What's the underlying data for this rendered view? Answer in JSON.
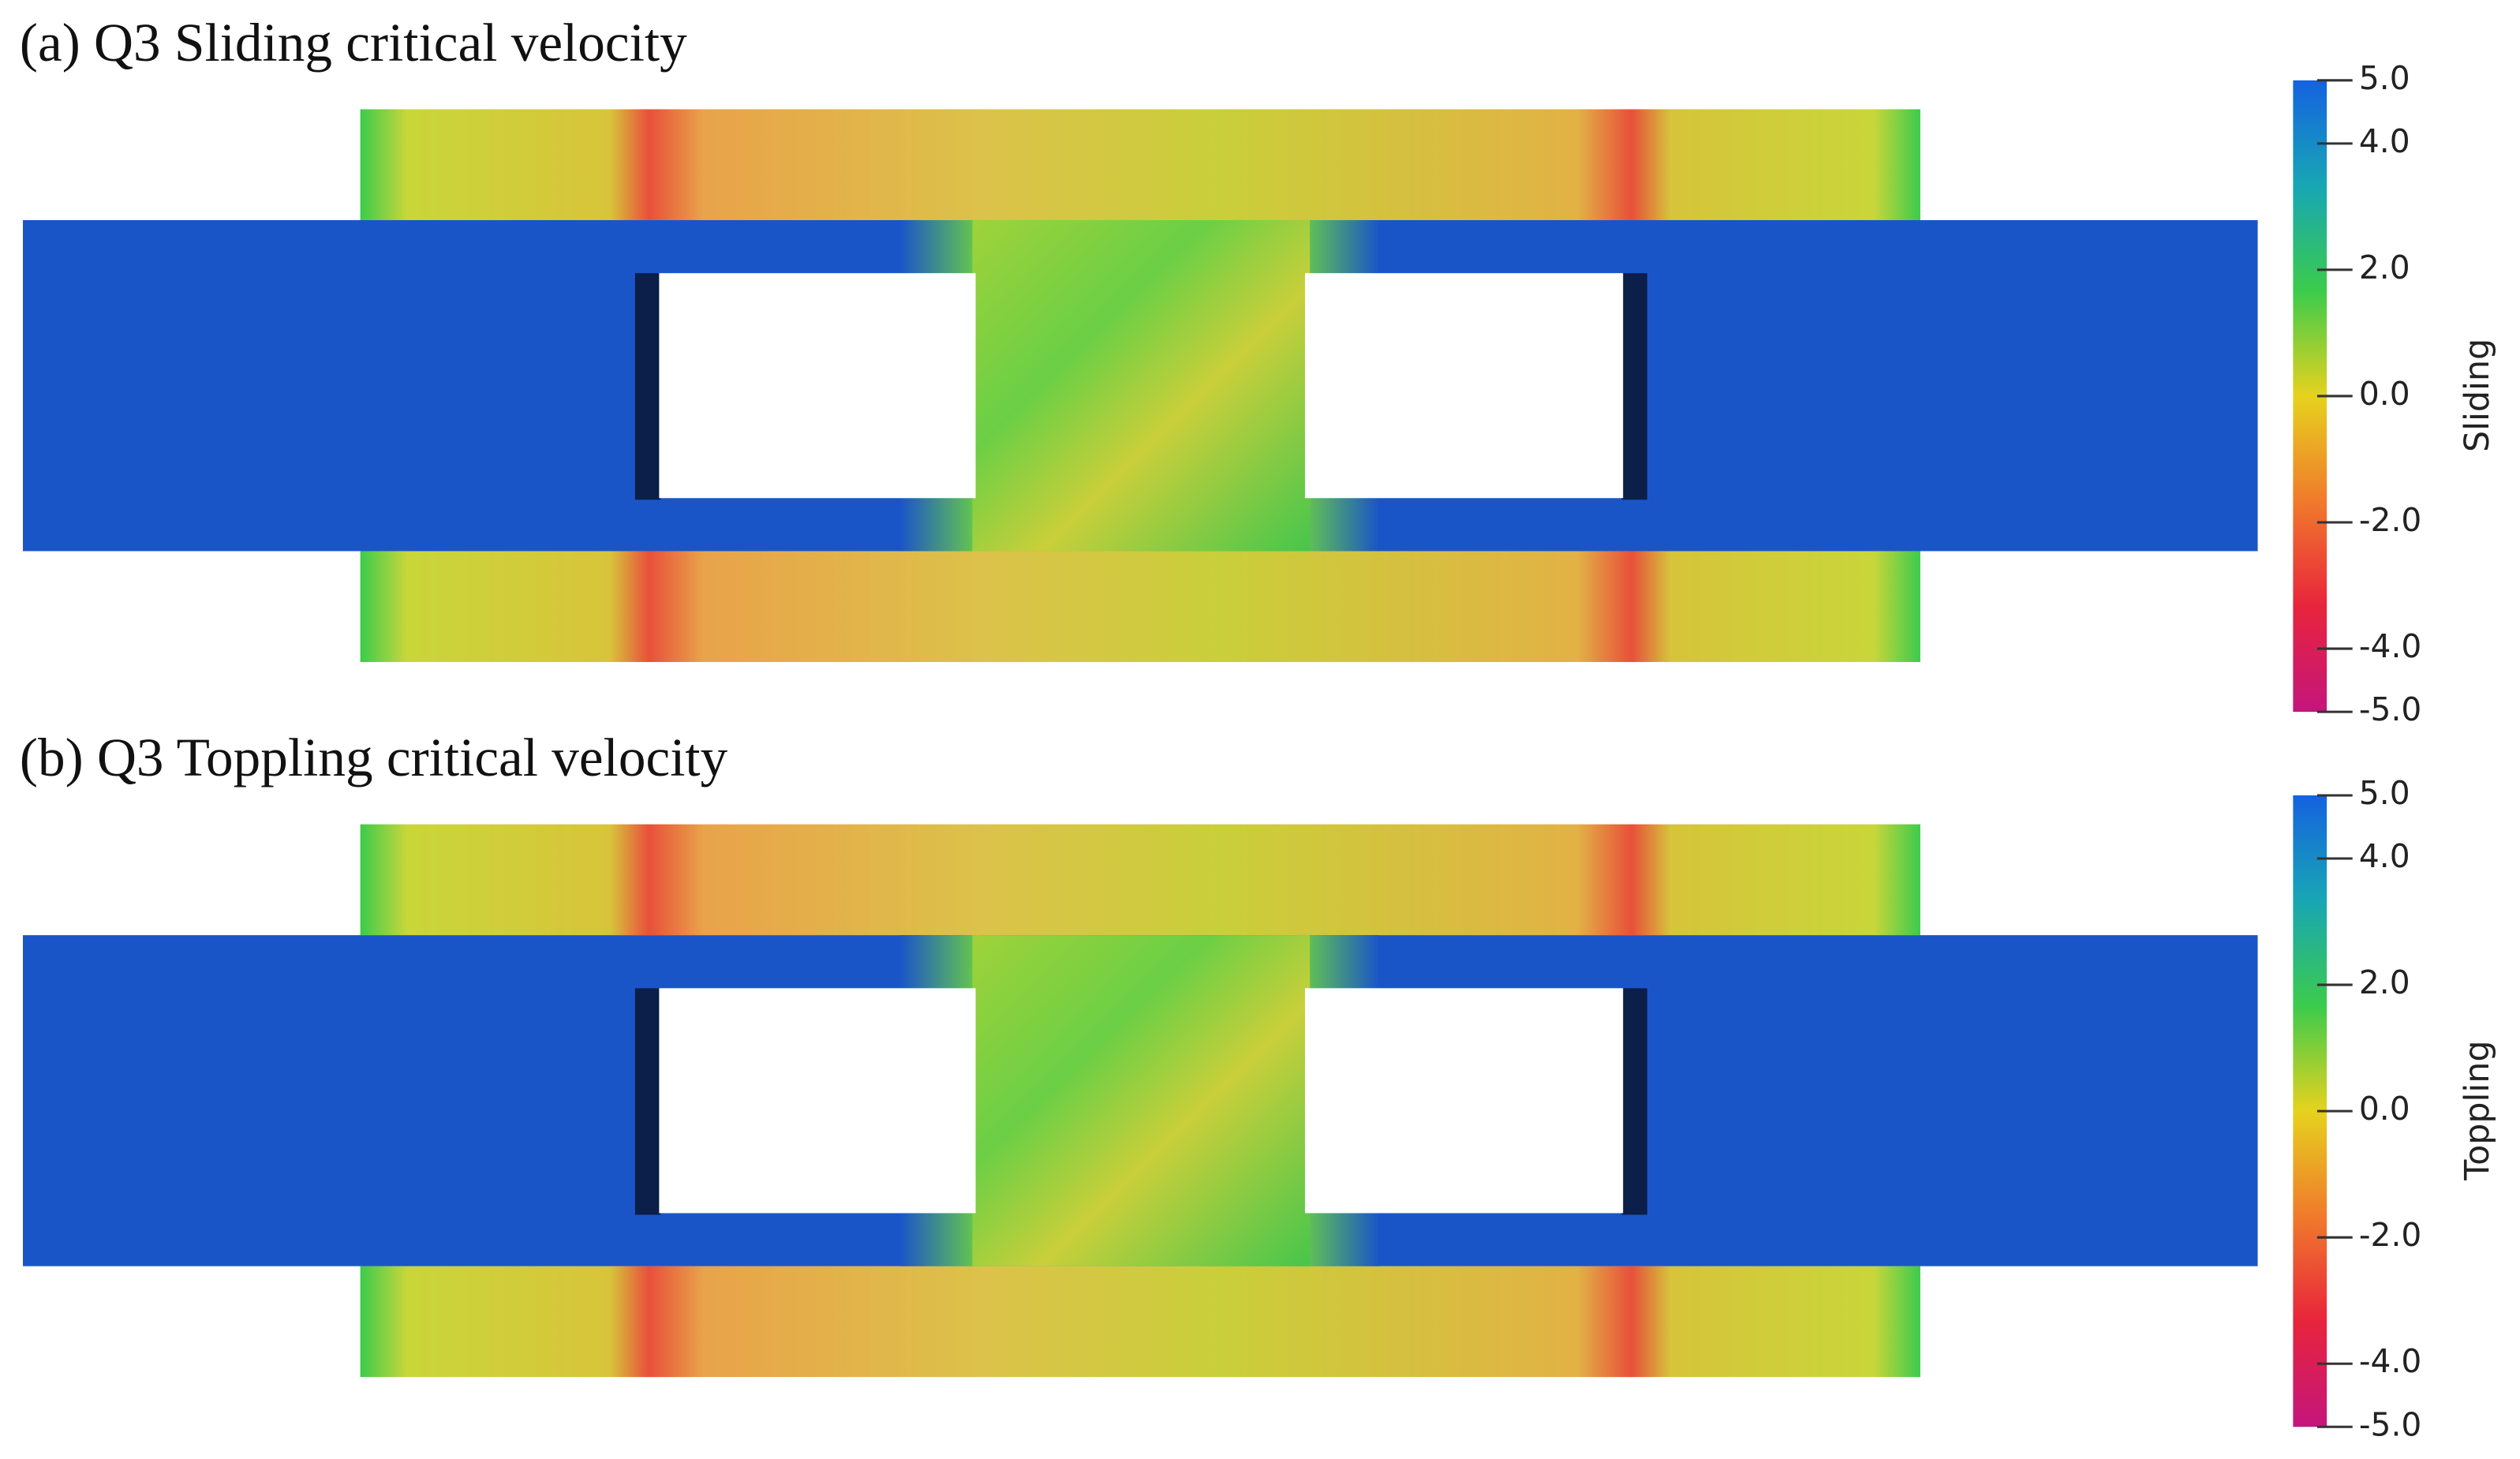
{
  "chart_data": [
    {
      "type": "field",
      "title": "(a) Q3 Sliding critical velocity",
      "colorbar_label": "Sliding",
      "clim": [
        -5,
        5
      ],
      "cticks": [
        {
          "value": 5,
          "label": "5.0"
        },
        {
          "value": 4,
          "label": "4.0"
        },
        {
          "value": 2,
          "label": "2.0"
        },
        {
          "value": 0,
          "label": "0.0"
        },
        {
          "value": -2,
          "label": "-2.0"
        },
        {
          "value": -4,
          "label": "-4.0"
        },
        {
          "value": -5,
          "label": "-5.0"
        }
      ],
      "colors": [
        "#c4157c",
        "#e8243c",
        "#f07a2c",
        "#e6d21e",
        "#3ccb4c",
        "#18a6b4",
        "#1462e0"
      ]
    },
    {
      "type": "field",
      "title": "(b) Q3 Toppling critical velocity",
      "colorbar_label": "Toppling",
      "clim": [
        -5,
        5
      ],
      "cticks": [
        {
          "value": 5,
          "label": "5.0"
        },
        {
          "value": 4,
          "label": "4.0"
        },
        {
          "value": 2,
          "label": "2.0"
        },
        {
          "value": 0,
          "label": "0.0"
        },
        {
          "value": -2,
          "label": "-2.0"
        },
        {
          "value": -4,
          "label": "-4.0"
        },
        {
          "value": -5,
          "label": "-5.0"
        }
      ],
      "colors": [
        "#c4157c",
        "#e8243c",
        "#f07a2c",
        "#e6d21e",
        "#3ccb4c",
        "#18a6b4",
        "#1462e0"
      ]
    }
  ]
}
